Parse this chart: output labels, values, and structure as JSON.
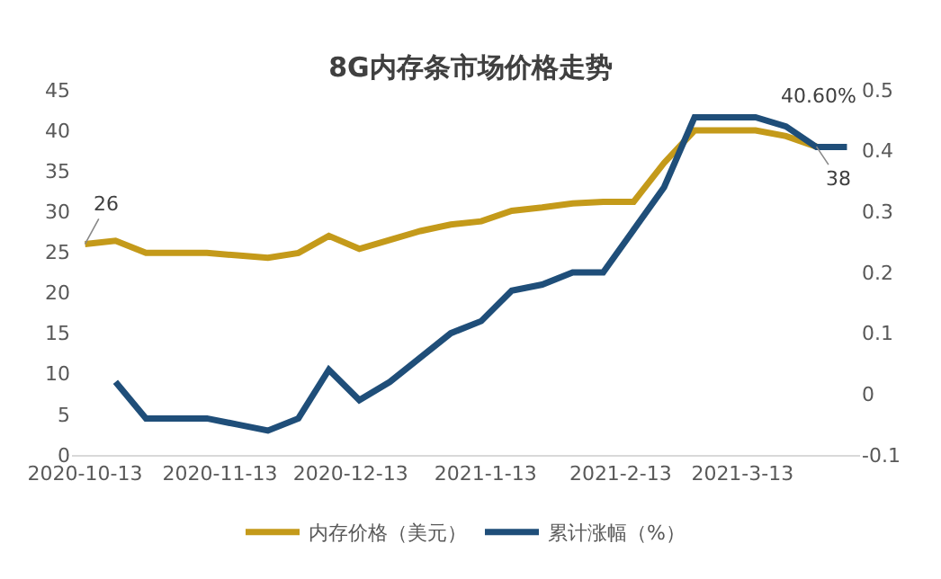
{
  "chart_data": {
    "type": "line",
    "title": "8G内存条市场价格走势",
    "x": [
      "2020-10-13",
      "2020-10-20",
      "2020-10-27",
      "2020-11-03",
      "2020-11-10",
      "2020-11-17",
      "2020-11-24",
      "2020-12-01",
      "2020-12-08",
      "2020-12-15",
      "2020-12-22",
      "2020-12-29",
      "2021-01-05",
      "2021-01-12",
      "2021-01-19",
      "2021-01-26",
      "2021-02-02",
      "2021-02-09",
      "2021-02-16",
      "2021-02-23",
      "2021-03-02",
      "2021-03-09",
      "2021-03-16",
      "2021-03-23",
      "2021-03-30",
      "2021-04-06"
    ],
    "series": [
      {
        "name": "内存价格（美元）",
        "color": "#c49a1a",
        "values": [
          26,
          26.4,
          24.9,
          24.9,
          24.9,
          24.6,
          24.3,
          24.9,
          27,
          25.4,
          26.5,
          27.6,
          28.4,
          28.8,
          30.1,
          30.5,
          31,
          31.2,
          31.2,
          36,
          40,
          40,
          40,
          39.3,
          38,
          null
        ]
      },
      {
        "name": "累计涨幅（%）",
        "color": "#1f4e79",
        "axis": "y2",
        "values": [
          null,
          0.02,
          -0.04,
          -0.04,
          -0.04,
          -0.05,
          -0.06,
          -0.04,
          0.04,
          -0.01,
          0.02,
          0.06,
          0.1,
          0.12,
          0.17,
          0.18,
          0.2,
          0.2,
          0.27,
          0.34,
          0.455,
          0.455,
          0.455,
          0.44,
          0.406,
          0.406
        ]
      }
    ],
    "annotations": [
      {
        "text": "26",
        "x": "2020-10-13",
        "y": 26
      },
      "40.60%",
      {
        "text": "38",
        "x": "2021-03-30",
        "y": 38
      }
    ],
    "xlim": [
      "2020-10-10",
      "2021-04-09"
    ],
    "xticks": [
      {
        "value": "2020-10-13",
        "label": "2020-10-13"
      },
      {
        "value": "2020-11-13",
        "label": "2020-11-13"
      },
      {
        "value": "2020-12-13",
        "label": "2020-12-13"
      },
      {
        "value": "2021-01-13",
        "label": "2021-1-13"
      },
      {
        "value": "2021-02-13",
        "label": "2021-2-13"
      },
      {
        "value": "2021-03-13",
        "label": "2021-3-13"
      }
    ],
    "ylim": [
      0,
      45
    ],
    "yticks": [
      0,
      5,
      10,
      15,
      20,
      25,
      30,
      35,
      40,
      45
    ],
    "y2lim": [
      -0.1,
      0.5
    ],
    "y2ticks": [
      -0.1,
      0,
      0.1,
      0.2,
      0.3,
      0.4,
      0.5
    ],
    "legend": "bottom",
    "marker": "none",
    "line_style": "solid"
  }
}
